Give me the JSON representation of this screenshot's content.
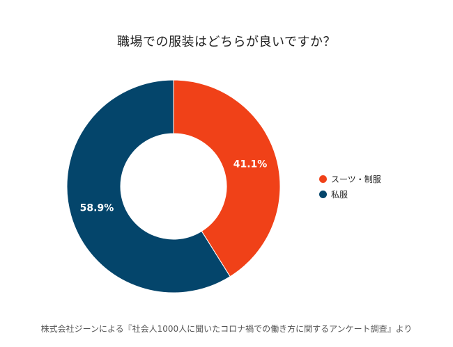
{
  "colors": {
    "suit": "#f04118",
    "casual": "#04456b"
  },
  "chart_data": {
    "type": "pie",
    "variant": "donut",
    "title": "職場での服装はどちらが良いですか？",
    "categories": [
      "スーツ・制服",
      "私服"
    ],
    "values": [
      41.1,
      58.9
    ],
    "unit": "%",
    "data_labels": [
      "41.1%",
      "58.9%"
    ],
    "legend_position": "right"
  },
  "footer": {
    "source": "株式会社ジーンによる『社会人1000人に聞いたコロナ禍での働き方に関するアンケート調査』より"
  }
}
